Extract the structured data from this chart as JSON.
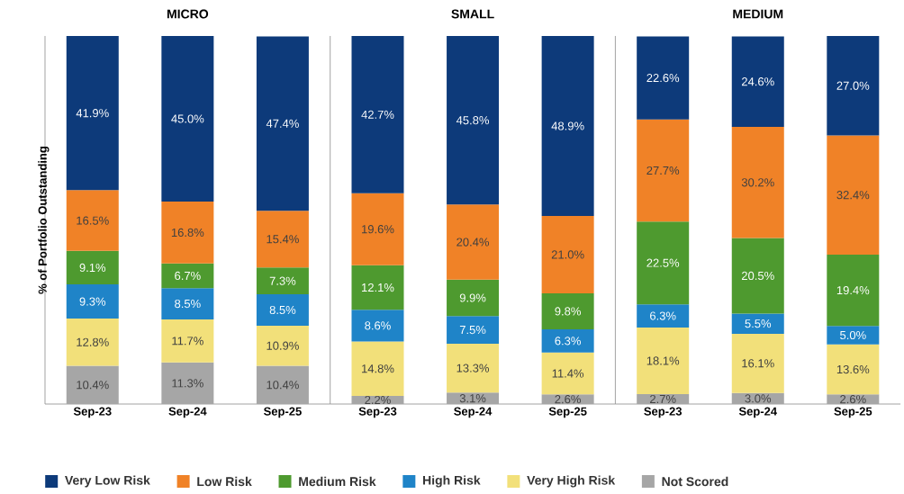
{
  "chart_data": [
    {
      "type": "bar",
      "stacked": true,
      "title": "MICRO",
      "ylabel": "% of Portfolio Outstanding",
      "categories": [
        "Sep-23",
        "Sep-24",
        "Sep-25"
      ],
      "tick_labels": "x",
      "legend": "bottom",
      "series": [
        {
          "name": "Not Scored",
          "color": "#a6a6a6",
          "values": [
            10.4,
            11.3,
            10.4
          ],
          "value_labels": [
            "10.4%",
            "11.3%",
            "10.4%"
          ]
        },
        {
          "name": "Very High Risk",
          "color": "#f2e07a",
          "values": [
            12.8,
            11.7,
            10.9
          ],
          "value_labels": [
            "12.8%",
            "11.7%",
            "10.9%"
          ]
        },
        {
          "name": "High Risk",
          "color": "#1f84c8",
          "values": [
            9.3,
            8.5,
            8.5
          ],
          "value_labels": [
            "9.3%",
            "8.5%",
            "8.5%"
          ]
        },
        {
          "name": "Medium Risk",
          "color": "#4e9a2f",
          "values": [
            9.1,
            6.7,
            7.3
          ],
          "value_labels": [
            "9.1%",
            "6.7%",
            "7.3%"
          ]
        },
        {
          "name": "Low Risk",
          "color": "#f08227",
          "values": [
            16.5,
            16.8,
            15.4
          ],
          "value_labels": [
            "16.5%",
            "16.8%",
            "15.4%"
          ]
        },
        {
          "name": "Very Low Risk",
          "color": "#0d3a7a",
          "values": [
            41.9,
            45.0,
            47.4
          ],
          "value_labels": [
            "41.9%",
            "45.0%",
            "47.4%"
          ]
        }
      ]
    },
    {
      "type": "bar",
      "stacked": true,
      "title": "SMALL",
      "categories": [
        "Sep-23",
        "Sep-24",
        "Sep-25"
      ],
      "tick_labels": "x",
      "series": [
        {
          "color": "#a6a6a6",
          "values": [
            2.2,
            3.1,
            2.6
          ],
          "value_labels": [
            "2.2%",
            "3.1%",
            "2.6%"
          ]
        },
        {
          "color": "#f2e07a",
          "values": [
            14.8,
            13.3,
            11.4
          ],
          "value_labels": [
            "14.8%",
            "13.3%",
            "11.4%"
          ]
        },
        {
          "color": "#1f84c8",
          "values": [
            8.6,
            7.5,
            6.3
          ],
          "value_labels": [
            "8.6%",
            "7.5%",
            "6.3%"
          ]
        },
        {
          "color": "#4e9a2f",
          "values": [
            12.1,
            9.9,
            9.8
          ],
          "value_labels": [
            "12.1%",
            "9.9%",
            "9.8%"
          ]
        },
        {
          "color": "#f08227",
          "values": [
            19.6,
            20.4,
            21.0
          ],
          "value_labels": [
            "19.6%",
            "20.4%",
            "21.0%"
          ]
        },
        {
          "color": "#0d3a7a",
          "values": [
            42.7,
            45.8,
            48.9
          ],
          "value_labels": [
            "42.7%",
            "45.8%",
            "48.9%"
          ]
        }
      ]
    },
    {
      "type": "bar",
      "stacked": true,
      "title": "MEDIUM",
      "categories": [
        "Sep-23",
        "Sep-24",
        "Sep-25"
      ],
      "tick_labels": "x",
      "series": [
        {
          "color": "#a6a6a6",
          "values": [
            2.7,
            3.0,
            2.6
          ],
          "value_labels": [
            "2.7%",
            "3.0%",
            "2.6%"
          ]
        },
        {
          "color": "#f2e07a",
          "values": [
            18.1,
            16.1,
            13.6
          ],
          "value_labels": [
            "18.1%",
            "16.1%",
            "13.6%"
          ]
        },
        {
          "color": "#1f84c8",
          "values": [
            6.3,
            5.5,
            5.0
          ],
          "value_labels": [
            "6.3%",
            "5.5%",
            "5.0%"
          ]
        },
        {
          "color": "#4e9a2f",
          "values": [
            22.5,
            20.5,
            19.4
          ],
          "value_labels": [
            "22.5%",
            "20.5%",
            "19.4%"
          ]
        },
        {
          "color": "#f08227",
          "values": [
            27.7,
            30.2,
            32.4
          ],
          "value_labels": [
            "27.7%",
            "30.2%",
            "32.4%"
          ]
        },
        {
          "color": "#0d3a7a",
          "values": [
            22.6,
            24.6,
            27.0
          ],
          "value_labels": [
            "22.6%",
            "24.6%",
            "27.0%"
          ]
        }
      ]
    }
  ]
}
